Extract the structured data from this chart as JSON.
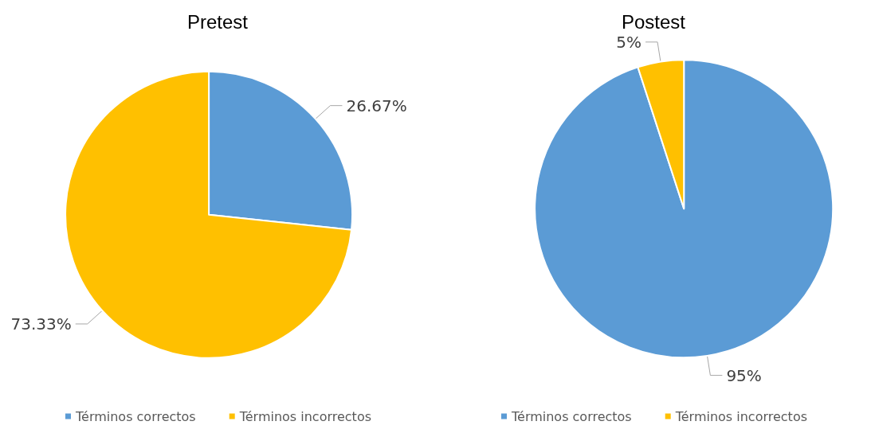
{
  "chart_data": [
    {
      "type": "pie",
      "title": "Pretest",
      "categories": [
        "Términos correctos",
        "Términos incorrectos"
      ],
      "values": [
        26.67,
        73.33
      ],
      "colors": [
        "#5b9bd5",
        "#ffc000"
      ],
      "value_labels": [
        "26.67%",
        "73.33%"
      ],
      "legend": "bottom"
    },
    {
      "type": "pie",
      "title": "Postest",
      "categories": [
        "Términos correctos",
        "Términos incorrectos"
      ],
      "values": [
        95,
        5
      ],
      "colors": [
        "#5b9bd5",
        "#ffc000"
      ],
      "value_labels": [
        "95%",
        "5%"
      ],
      "legend": "bottom"
    }
  ]
}
